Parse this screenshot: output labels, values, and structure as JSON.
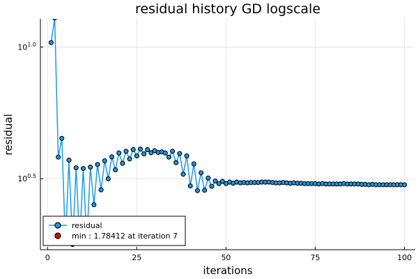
{
  "chart_data": {
    "type": "line",
    "title": "residual history GD logscale",
    "xlabel": "iterations",
    "ylabel": "residual",
    "y_scale": "log10",
    "xlim": [
      -2,
      103
    ],
    "ylim": [
      1.7,
      12.8
    ],
    "x_ticks": [
      0,
      25,
      50,
      75,
      100
    ],
    "x_tick_labels": [
      "0",
      "25",
      "50",
      "75",
      "100"
    ],
    "y_ticks": [
      3.1623,
      10.0
    ],
    "y_tick_labels": [
      {
        "base": "10",
        "exp": "0.5"
      },
      {
        "base": "10",
        "exp": "1.0"
      }
    ],
    "grid": true,
    "legend_position": "bottom-left",
    "series": [
      {
        "name": "residual",
        "color": "#1b9ae4",
        "marker_fill": "#1b9ae4",
        "x": [
          1,
          2,
          3,
          4,
          5,
          6,
          7,
          8,
          9,
          10,
          11,
          12,
          13,
          14,
          15,
          16,
          17,
          18,
          19,
          20,
          21,
          22,
          23,
          24,
          25,
          26,
          27,
          28,
          29,
          30,
          31,
          32,
          33,
          34,
          35,
          36,
          37,
          38,
          39,
          40,
          41,
          42,
          43,
          44,
          45,
          46,
          47,
          48,
          49,
          50,
          51,
          52,
          53,
          54,
          55,
          56,
          57,
          58,
          59,
          60,
          61,
          62,
          63,
          64,
          65,
          66,
          67,
          68,
          69,
          70,
          71,
          72,
          73,
          74,
          75,
          76,
          77,
          78,
          79,
          80,
          81,
          82,
          83,
          84,
          85,
          86,
          87,
          88,
          89,
          90,
          91,
          92,
          93,
          94,
          95,
          96,
          97,
          98,
          99,
          100
        ],
        "y": [
          10.4,
          12.9,
          3.82,
          4.5,
          1.8,
          3.72,
          1.78,
          3.48,
          1.8,
          3.46,
          1.82,
          3.5,
          2.52,
          3.58,
          2.87,
          3.7,
          3.16,
          3.83,
          3.42,
          3.96,
          3.62,
          4.02,
          3.76,
          4.08,
          3.86,
          4.1,
          3.93,
          4.08,
          3.97,
          4.04,
          3.98,
          4.0,
          3.96,
          3.82,
          4.02,
          3.64,
          3.94,
          3.29,
          3.86,
          2.97,
          3.6,
          2.85,
          3.33,
          2.86,
          3.18,
          2.96,
          3.1,
          3.03,
          3.09,
          3.03,
          3.07,
          3.04,
          3.07,
          3.05,
          3.06,
          3.05,
          3.06,
          3.06,
          3.06,
          3.07,
          3.07,
          3.07,
          3.06,
          3.05,
          3.05,
          3.06,
          3.05,
          3.04,
          3.05,
          3.04,
          3.04,
          3.03,
          3.03,
          3.03,
          3.03,
          3.02,
          3.03,
          3.02,
          3.02,
          3.02,
          3.02,
          3.02,
          3.03,
          3.02,
          3.02,
          3.02,
          3.02,
          3.01,
          3.01,
          3.0,
          3.01,
          3.0,
          3.0,
          3.0,
          3.0,
          3.0,
          3.0,
          3.0,
          3.0,
          3.0
        ]
      },
      {
        "name": "min : 1.78412 at iteration 7",
        "color": "#e00000",
        "marker_fill": "#e00000",
        "x": [
          7
        ],
        "y": [
          1.78412
        ]
      }
    ]
  }
}
